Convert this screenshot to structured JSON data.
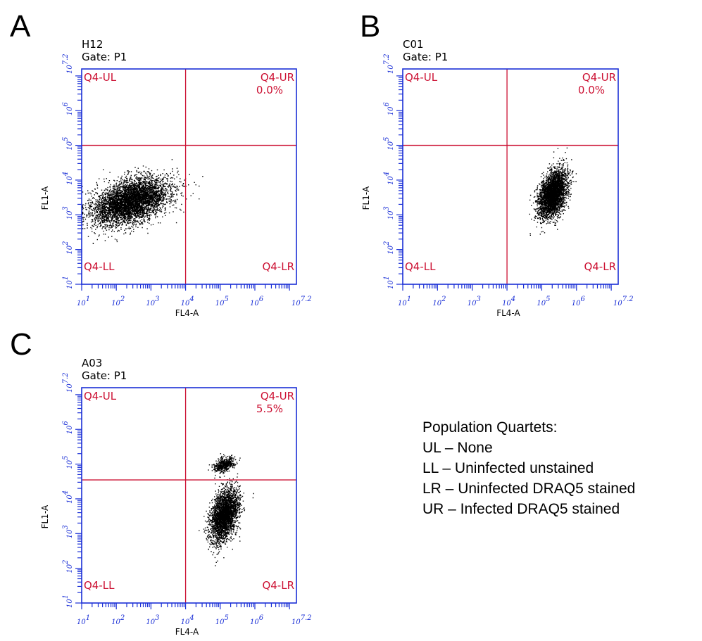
{
  "colors": {
    "frame": "#1a2fd6",
    "gate": "#cc1133",
    "events": "#000000"
  },
  "chart_data": [
    {
      "type": "scatter",
      "panel": "A",
      "title": "H12",
      "subtitle": "Gate: P1",
      "xlabel": "FL4-A",
      "ylabel": "FL1-A",
      "xscale": "log",
      "yscale": "log",
      "xlim": [
        10,
        15848932
      ],
      "ylim": [
        10,
        15848932
      ],
      "x_ticks": [
        {
          "base": "10",
          "exp": "1"
        },
        {
          "base": "10",
          "exp": "2"
        },
        {
          "base": "10",
          "exp": "3"
        },
        {
          "base": "10",
          "exp": "4"
        },
        {
          "base": "10",
          "exp": "5"
        },
        {
          "base": "10",
          "exp": "6"
        },
        {
          "base": "10",
          "exp": "7.2"
        }
      ],
      "y_ticks": [
        {
          "base": "10",
          "exp": "1"
        },
        {
          "base": "10",
          "exp": "2"
        },
        {
          "base": "10",
          "exp": "3"
        },
        {
          "base": "10",
          "exp": "4"
        },
        {
          "base": "10",
          "exp": "5"
        },
        {
          "base": "10",
          "exp": "6"
        },
        {
          "base": "10",
          "exp": "7.2"
        }
      ],
      "gate": {
        "x": 10000,
        "y": 100000
      },
      "quadrants": {
        "UL": "Q4-UL",
        "UR": "Q4-UR",
        "LL": "Q4-LL",
        "LR": "Q4-LR",
        "UR_percent": "0.0%"
      },
      "populations": [
        {
          "x_center": 250,
          "y_center": 2500,
          "x_spread_decades": 0.55,
          "y_spread_decades": 0.3,
          "approx_events": 5000
        }
      ]
    },
    {
      "type": "scatter",
      "panel": "B",
      "title": "C01",
      "subtitle": "Gate: P1",
      "xlabel": "FL4-A",
      "ylabel": "FL1-A",
      "xscale": "log",
      "yscale": "log",
      "xlim": [
        10,
        15848932
      ],
      "ylim": [
        10,
        15848932
      ],
      "x_ticks": [
        {
          "base": "10",
          "exp": "1"
        },
        {
          "base": "10",
          "exp": "2"
        },
        {
          "base": "10",
          "exp": "3"
        },
        {
          "base": "10",
          "exp": "4"
        },
        {
          "base": "10",
          "exp": "5"
        },
        {
          "base": "10",
          "exp": "6"
        },
        {
          "base": "10",
          "exp": "7.2"
        }
      ],
      "y_ticks": [
        {
          "base": "10",
          "exp": "1"
        },
        {
          "base": "10",
          "exp": "2"
        },
        {
          "base": "10",
          "exp": "3"
        },
        {
          "base": "10",
          "exp": "4"
        },
        {
          "base": "10",
          "exp": "5"
        },
        {
          "base": "10",
          "exp": "6"
        },
        {
          "base": "10",
          "exp": "7.2"
        }
      ],
      "gate": {
        "x": 10000,
        "y": 100000
      },
      "quadrants": {
        "UL": "Q4-UL",
        "UR": "Q4-UR",
        "LL": "Q4-LL",
        "LR": "Q4-LR",
        "UR_percent": "0.0%"
      },
      "populations": [
        {
          "x_center": 200000,
          "y_center": 4000,
          "x_spread_decades": 0.2,
          "y_spread_decades": 0.3,
          "approx_events": 3500
        }
      ]
    },
    {
      "type": "scatter",
      "panel": "C",
      "title": "A03",
      "subtitle": "Gate: P1",
      "xlabel": "FL4-A",
      "ylabel": "FL1-A",
      "xscale": "log",
      "yscale": "log",
      "xlim": [
        10,
        15848932
      ],
      "ylim": [
        10,
        15848932
      ],
      "x_ticks": [
        {
          "base": "10",
          "exp": "1"
        },
        {
          "base": "10",
          "exp": "2"
        },
        {
          "base": "10",
          "exp": "3"
        },
        {
          "base": "10",
          "exp": "4"
        },
        {
          "base": "10",
          "exp": "5"
        },
        {
          "base": "10",
          "exp": "6"
        },
        {
          "base": "10",
          "exp": "7.2"
        }
      ],
      "y_ticks": [
        {
          "base": "10",
          "exp": "1"
        },
        {
          "base": "10",
          "exp": "2"
        },
        {
          "base": "10",
          "exp": "3"
        },
        {
          "base": "10",
          "exp": "4"
        },
        {
          "base": "10",
          "exp": "5"
        },
        {
          "base": "10",
          "exp": "6"
        },
        {
          "base": "10",
          "exp": "7.2"
        }
      ],
      "gate": {
        "x": 10000,
        "y": 35000
      },
      "quadrants": {
        "UL": "Q4-UL",
        "UR": "Q4-UR",
        "LL": "Q4-LL",
        "LR": "Q4-LR",
        "UR_percent": "5.5%"
      },
      "populations": [
        {
          "x_center": 130000,
          "y_center": 3500,
          "x_spread_decades": 0.2,
          "y_spread_decades": 0.35,
          "approx_events": 3000
        },
        {
          "x_center": 130000,
          "y_center": 100000,
          "x_spread_decades": 0.15,
          "y_spread_decades": 0.1,
          "approx_events": 500
        }
      ]
    }
  ],
  "legend": {
    "heading": "Population Quartets:",
    "items": [
      "UL – None",
      "LL – Uninfected unstained",
      "LR – Uninfected DRAQ5 stained",
      "UR – Infected DRAQ5 stained"
    ]
  }
}
